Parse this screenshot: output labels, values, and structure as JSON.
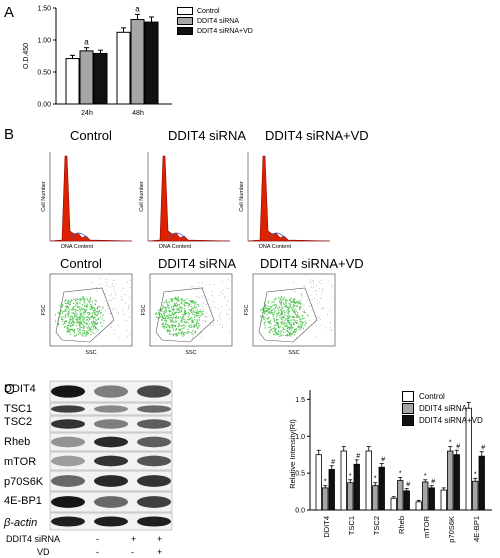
{
  "panels": {
    "a": "A",
    "b": "B",
    "c": "C"
  },
  "legend_ab": [
    "Control",
    "DDIT4 siRNA",
    "DDIT4 siRNA+VD"
  ],
  "colors": {
    "control": "#ffffff",
    "sirna": "#a6a6a6",
    "sirna_vd": "#111111",
    "histogram": "#dd2200",
    "scatter": "#33bb33"
  },
  "chart_a": {
    "type": "bar",
    "categories": [
      "24h",
      "48h"
    ],
    "series": [
      {
        "name": "Control",
        "values": [
          0.71,
          1.12
        ],
        "errors": [
          0.05,
          0.07
        ]
      },
      {
        "name": "DDIT4 siRNA",
        "values": [
          0.83,
          1.32
        ],
        "errors": [
          0.05,
          0.08
        ]
      },
      {
        "name": "DDIT4 siRNA+VD",
        "values": [
          0.79,
          1.28
        ],
        "errors": [
          0.05,
          0.08
        ]
      }
    ],
    "ylabel": "O.D.450",
    "ylim": [
      0,
      1.5
    ],
    "yticks": [
      "0.00",
      "0.50",
      "1.00",
      "1.50"
    ],
    "annotations": [
      "a",
      "a"
    ]
  },
  "flow": {
    "titles_top": [
      "Control",
      "DDIT4 siRNA",
      "DDIT4 siRNA+VD"
    ],
    "titles_bottom": [
      "Control",
      "DDIT4 siRNA",
      "DDIT4 siRNA+VD"
    ],
    "hist_xlabel": "DNA Content",
    "hist_ylabel": "Cell Number",
    "scatter_xlabel": "SSC",
    "scatter_ylabel": "FSC"
  },
  "western": {
    "proteins": [
      "DDIT4",
      "TSC1",
      "TSC2",
      "Rheb",
      "mTOR",
      "p70S6K",
      "4E-BP1",
      "β-actin"
    ],
    "row_labels": [
      "DDIT4 siRNA",
      "VD"
    ],
    "row_values": [
      [
        "-",
        "+",
        "+"
      ],
      [
        "-",
        "-",
        "+"
      ]
    ]
  },
  "chart_data": {
    "type": "bar",
    "categories": [
      "DDIT4",
      "TSC1",
      "TSC2",
      "Rheb",
      "mTOR",
      "p70S6K",
      "4E-BP1"
    ],
    "series": [
      {
        "name": "Control",
        "values": [
          0.75,
          0.8,
          0.8,
          0.16,
          0.11,
          0.27,
          1.38
        ],
        "errors": [
          0.06,
          0.06,
          0.06,
          0.02,
          0.02,
          0.03,
          0.08
        ]
      },
      {
        "name": "DDIT4 siRNA",
        "values": [
          0.3,
          0.37,
          0.33,
          0.4,
          0.38,
          0.8,
          0.39
        ],
        "errors": [
          0.03,
          0.04,
          0.04,
          0.04,
          0.03,
          0.06,
          0.04
        ]
      },
      {
        "name": "DDIT4 siRNA+VD",
        "values": [
          0.55,
          0.62,
          0.58,
          0.26,
          0.3,
          0.75,
          0.73
        ],
        "errors": [
          0.05,
          0.06,
          0.05,
          0.03,
          0.03,
          0.06,
          0.06
        ]
      }
    ],
    "ylabel": "Relative Intensity(RI)",
    "ylim": [
      0,
      1.6
    ],
    "yticks": [
      "0.0",
      "0.5",
      "1.0",
      "1.5"
    ],
    "legend": [
      "Control",
      "DDIT4 siRNA",
      "DDIT4 siRNA+VD"
    ],
    "legend_position": "top-right",
    "markers": {
      "sirna": "*",
      "sirna_vd": "#"
    }
  }
}
